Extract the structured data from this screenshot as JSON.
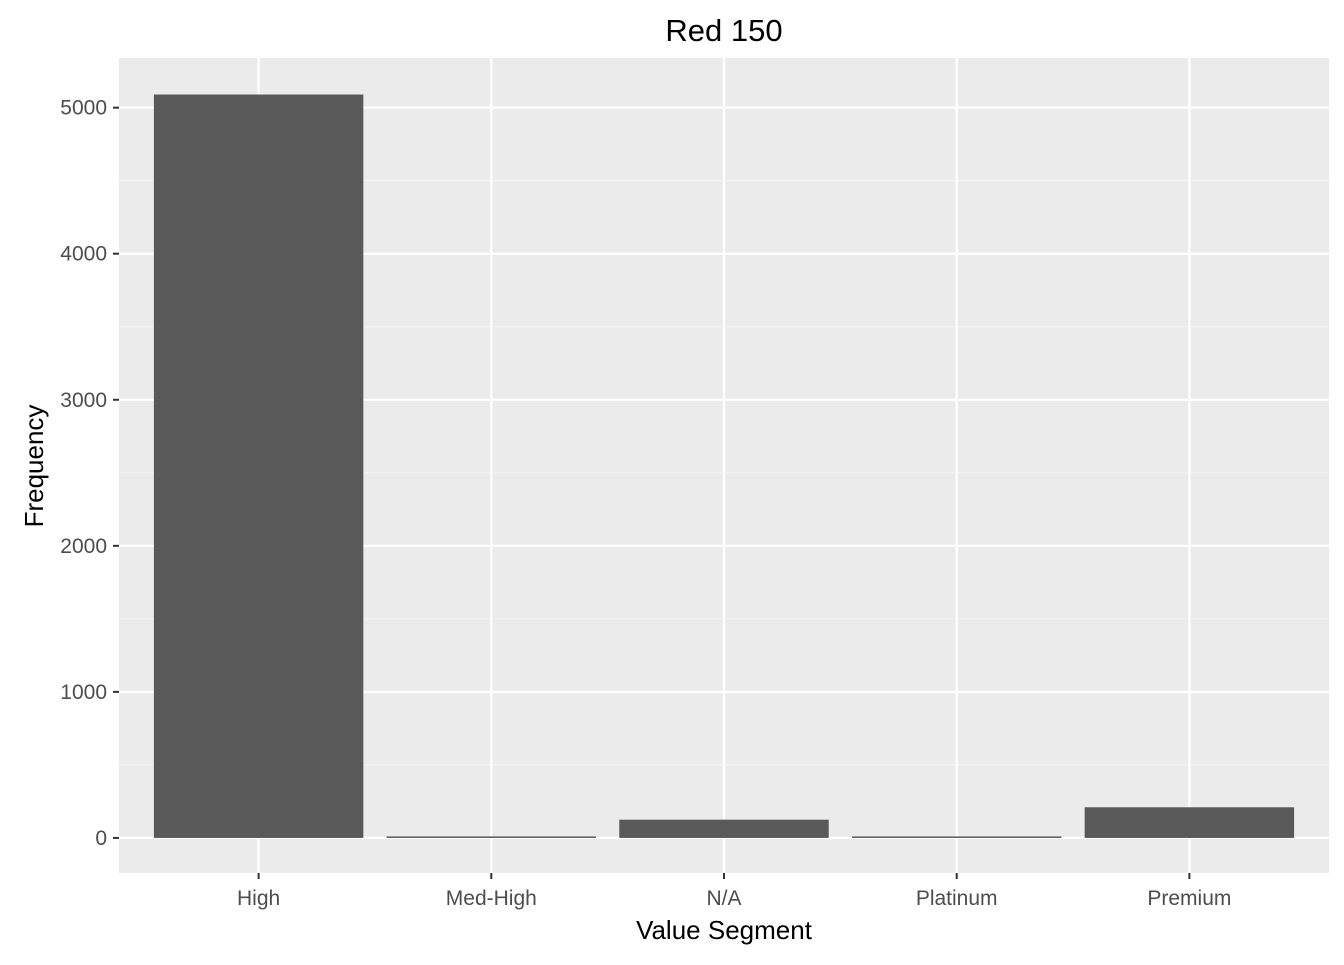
{
  "chart_data": {
    "type": "bar",
    "title": "Red 150",
    "xlabel": "Value Segment",
    "ylabel": "Frequency",
    "categories": [
      "High",
      "Med-High",
      "N/A",
      "Platinum",
      "Premium"
    ],
    "values": [
      5090,
      8,
      125,
      4,
      210
    ],
    "ylim": [
      -240,
      5340
    ],
    "yticks": [
      0,
      1000,
      2000,
      3000,
      4000,
      5000
    ],
    "grid": true,
    "legend": "none",
    "colors": {
      "bar": "#595959",
      "panel": "#ebebeb",
      "grid_major": "#ffffff",
      "grid_minor": "#f5f5f5"
    }
  }
}
